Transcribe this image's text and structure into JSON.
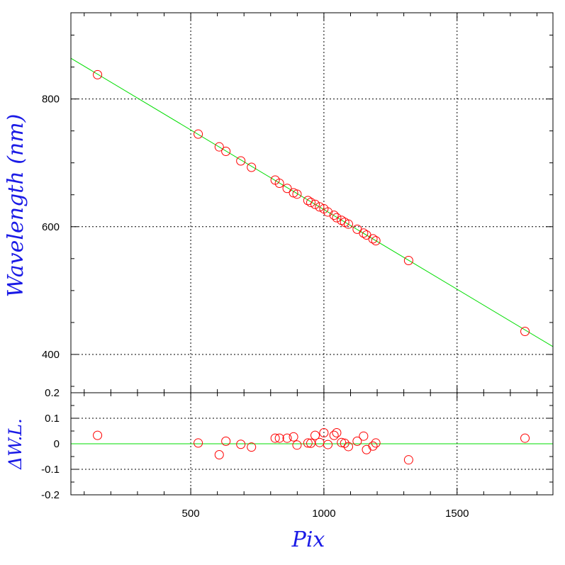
{
  "chart_data": [
    {
      "type": "scatter",
      "panel": "fit",
      "xlabel": "",
      "ylabel": "Wavelength (nm)",
      "xlim": [
        50,
        1860
      ],
      "ylim": [
        340,
        935
      ],
      "grid": true,
      "yticks": [
        400,
        600,
        800
      ],
      "xticks": [
        500,
        1000,
        1500
      ],
      "series": [
        {
          "kind": "points",
          "marker": "open-circle",
          "color": "#ff0000",
          "x": [
            150,
            528,
            607,
            632,
            688,
            728,
            817,
            833,
            862,
            886,
            899,
            940,
            951,
            967,
            984,
            1000,
            1015,
            1038,
            1048,
            1066,
            1078,
            1092,
            1125,
            1149,
            1160,
            1184,
            1195,
            1318,
            1755
          ],
          "y": [
            838,
            745,
            725,
            718,
            703,
            693,
            673,
            668,
            660,
            653,
            651,
            641,
            638,
            635,
            631,
            628,
            623,
            618,
            614,
            610,
            607,
            604,
            596,
            590,
            587,
            581,
            578,
            547,
            436
          ]
        },
        {
          "kind": "line",
          "color": "#00dd00",
          "x": [
            50,
            1860
          ],
          "y": [
            863.8,
            412.2
          ]
        }
      ]
    },
    {
      "type": "scatter",
      "panel": "residuals",
      "xlabel": "Pix",
      "ylabel": "ΔW.L.",
      "xlim": [
        50,
        1860
      ],
      "ylim": [
        -0.2,
        0.2
      ],
      "grid": true,
      "yticks": [
        -0.2,
        -0.1,
        0,
        0.1,
        0.2
      ],
      "ytick_labels": [
        "-0.2",
        "-0.1",
        "0",
        "0.1",
        "0.2"
      ],
      "xticks": [
        500,
        1000,
        1500
      ],
      "xtick_labels": [
        "500",
        "1000",
        "1500"
      ],
      "series": [
        {
          "kind": "points",
          "marker": "open-circle",
          "color": "#ff0000",
          "x": [
            150,
            528,
            607,
            632,
            688,
            728,
            817,
            833,
            862,
            886,
            899,
            940,
            951,
            967,
            984,
            1000,
            1015,
            1038,
            1048,
            1066,
            1078,
            1092,
            1125,
            1149,
            1160,
            1184,
            1195,
            1318,
            1755
          ],
          "y": [
            0.033,
            0.003,
            -0.043,
            0.01,
            -0.002,
            -0.013,
            0.022,
            0.022,
            0.022,
            0.027,
            -0.005,
            0.003,
            0.002,
            0.033,
            0.005,
            0.043,
            -0.003,
            0.033,
            0.043,
            0.005,
            0.002,
            -0.011,
            0.01,
            0.03,
            -0.023,
            -0.009,
            0.003,
            -0.063,
            0.022
          ]
        },
        {
          "kind": "line",
          "color": "#00dd00",
          "x": [
            50,
            1860
          ],
          "y": [
            0.0,
            0.0
          ]
        }
      ]
    }
  ]
}
